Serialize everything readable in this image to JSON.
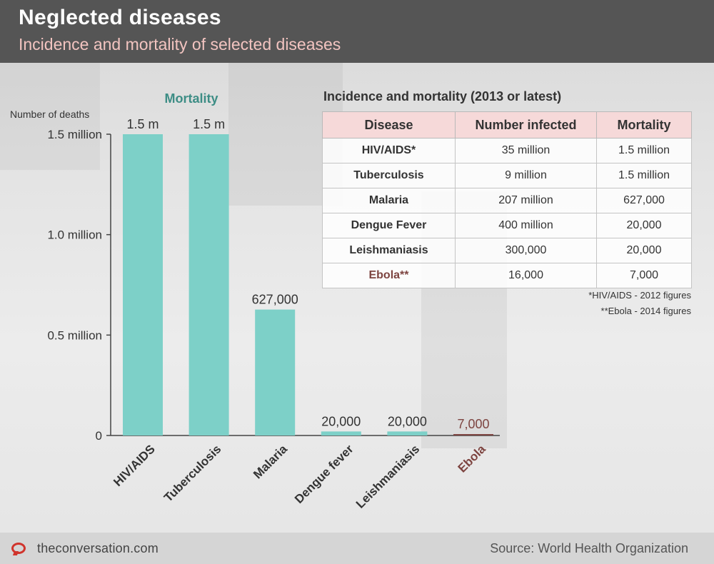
{
  "header": {
    "title": "Neglected diseases",
    "subtitle": "Incidence and mortality of selected diseases"
  },
  "chart_data": {
    "type": "bar",
    "title": "Mortality",
    "ylabel": "Number of deaths",
    "categories": [
      "HIV/AIDS",
      "Tuberculosis",
      "Malaria",
      "Dengue fever",
      "Leishmaniasis",
      "Ebola"
    ],
    "values": [
      1500000,
      1500000,
      627000,
      20000,
      20000,
      7000
    ],
    "data_labels": [
      "1.5 m",
      "1.5 m",
      "627,000",
      "20,000",
      "20,000",
      "7,000"
    ],
    "ylim": [
      0,
      1500000
    ],
    "yticks": [
      0,
      500000,
      1000000,
      1500000
    ],
    "ytick_labels": [
      "0",
      "0.5 million",
      "1.0 million",
      "1.5 million"
    ],
    "grid": false,
    "colors": {
      "bar": "#7dd0c8",
      "highlight_bar": "#7d4440",
      "highlight_text": "#7d4440"
    },
    "highlight_category": "Ebola"
  },
  "table": {
    "title": "Incidence and mortality (2013 or latest)",
    "columns": [
      "Disease",
      "Number infected",
      "Mortality"
    ],
    "rows": [
      {
        "disease": "HIV/AIDS*",
        "infected": "35 million",
        "mortality": "1.5 million"
      },
      {
        "disease": "Tuberculosis",
        "infected": "9 million",
        "mortality": "1.5 million"
      },
      {
        "disease": "Malaria",
        "infected": "207 million",
        "mortality": "627,000"
      },
      {
        "disease": "Dengue Fever",
        "infected": "400 million",
        "mortality": "20,000"
      },
      {
        "disease": "Leishmaniasis",
        "infected": "300,000",
        "mortality": "20,000"
      },
      {
        "disease": "Ebola**",
        "infected": "16,000",
        "mortality": "7,000"
      }
    ],
    "notes": [
      "*HIV/AIDS - 2012 figures",
      "**Ebola - 2014 figures"
    ]
  },
  "footer": {
    "brand": "theconversation.com",
    "source": "Source: World Health Organization"
  }
}
